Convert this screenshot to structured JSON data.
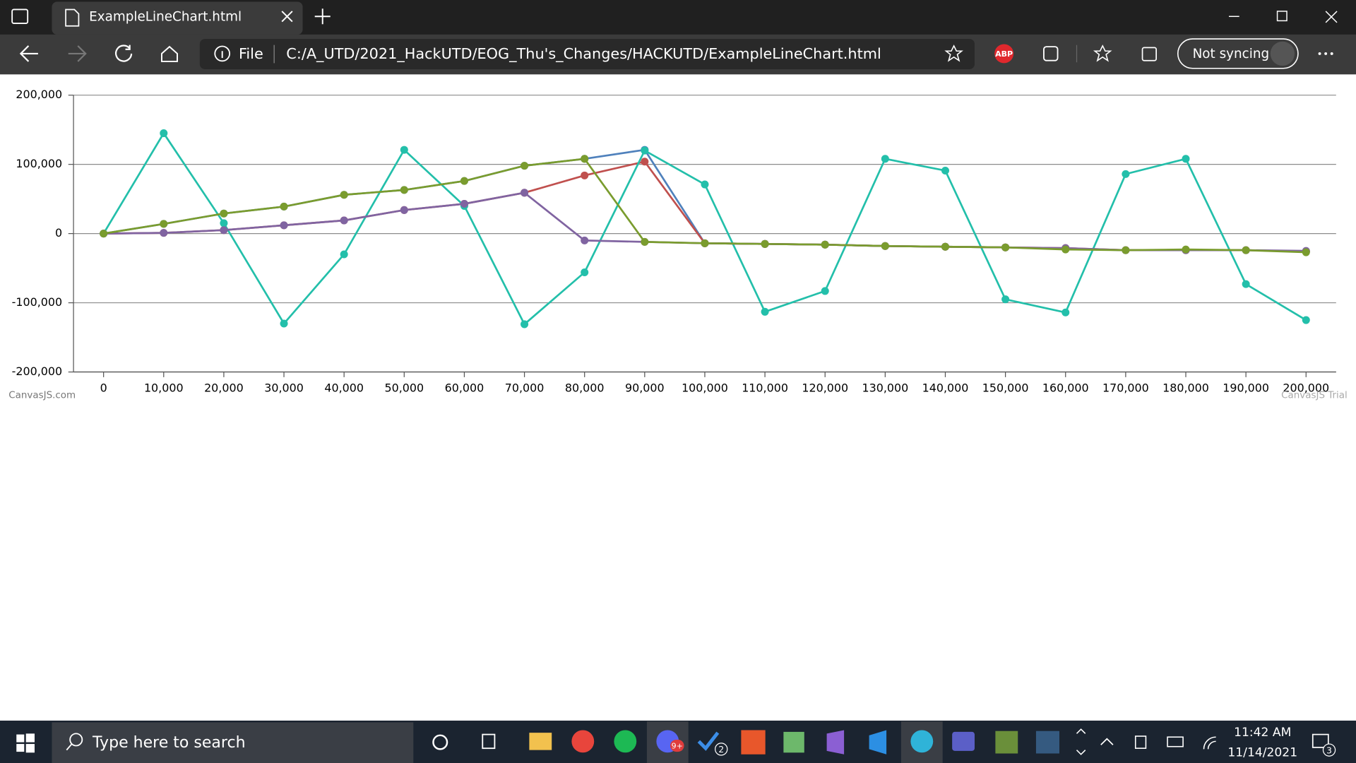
{
  "browser": {
    "tab_title": "ExampleLineChart.html",
    "address_label": "File",
    "url": "C:/A_UTD/2021_HackUTD/EOG_Thu's_Changes/HACKUTD/ExampleLineChart.html",
    "abp": "ABP",
    "sync": "Not syncing"
  },
  "taskbar": {
    "search": "Type here to search",
    "badges": [
      "9+",
      "2",
      "3"
    ],
    "time": "11:42 AM",
    "date": "11/14/2021"
  },
  "chart_data": {
    "type": "line",
    "credit": "CanvasJS.com",
    "watermark": "CanvasJS Trial",
    "grid": true,
    "x": [
      0,
      10000,
      20000,
      30000,
      40000,
      50000,
      60000,
      70000,
      80000,
      90000,
      100000,
      110000,
      120000,
      130000,
      140000,
      150000,
      160000,
      170000,
      180000,
      190000,
      200000
    ],
    "xlim": [
      -5000,
      205000
    ],
    "xticks": [
      0,
      {
        "value": 10000,
        "label": "10,000"
      },
      {
        "value": 20000,
        "label": "20,000"
      },
      {
        "value": 30000,
        "label": "30,000"
      },
      {
        "value": 40000,
        "label": "40,000"
      },
      {
        "value": 50000,
        "label": "50,000"
      },
      {
        "value": 60000,
        "label": "60,000"
      },
      {
        "value": 70000,
        "label": "70,000"
      },
      {
        "value": 80000,
        "label": "80,000"
      },
      {
        "value": 90000,
        "label": "90,000"
      },
      {
        "value": 100000,
        "label": "100,000"
      },
      {
        "value": 110000,
        "label": "110,000"
      },
      {
        "value": 120000,
        "label": "120,000"
      },
      {
        "value": 130000,
        "label": "130,000"
      },
      {
        "value": 140000,
        "label": "140,000"
      },
      {
        "value": 150000,
        "label": "150,000"
      },
      {
        "value": 160000,
        "label": "160,000"
      },
      {
        "value": 170000,
        "label": "170,000"
      },
      {
        "value": 180000,
        "label": "180,000"
      },
      {
        "value": 190000,
        "label": "190,000"
      },
      {
        "value": 200000,
        "label": "200,000"
      }
    ],
    "ylim": [
      -200000,
      200000
    ],
    "yticks": [
      {
        "value": -200000,
        "label": "-200,000"
      },
      {
        "value": -100000,
        "label": "-100,000"
      },
      0,
      {
        "value": 100000,
        "label": "100,000"
      },
      {
        "value": 200000,
        "label": "200,000"
      }
    ],
    "series": [
      {
        "color": "#4f81bc",
        "values": [
          0,
          14000,
          29000,
          39000,
          56000,
          63000,
          76000,
          98000,
          108000,
          121000,
          -14000,
          -15000,
          -16000,
          -18000,
          -19000,
          -20000,
          -22000,
          -24000,
          -24000,
          -24000,
          -26000
        ]
      },
      {
        "color": "#c0504e",
        "values": [
          0,
          1000,
          5000,
          12000,
          19000,
          34000,
          43000,
          59000,
          84000,
          104000,
          -14000,
          -15000,
          -16000,
          -18000,
          -19000,
          -20000,
          -21000,
          -24000,
          -24000,
          -24000,
          -26000
        ]
      },
      {
        "color": "#23bfaa",
        "values": [
          0,
          145000,
          15000,
          -130000,
          -30000,
          121000,
          40000,
          -131000,
          -56000,
          120000,
          71000,
          -113000,
          -83000,
          108000,
          91000,
          -95000,
          -114000,
          86000,
          108000,
          -73000,
          -125000
        ]
      },
      {
        "color": "#8064a1",
        "values": [
          0,
          1000,
          5000,
          12000,
          19000,
          34000,
          43000,
          59000,
          -10000,
          -12000,
          -14000,
          -15000,
          -16000,
          -18000,
          -19000,
          -20000,
          -21000,
          -24000,
          -24000,
          -24000,
          -25000
        ]
      },
      {
        "color": "#7a9c2e",
        "values": [
          0,
          14000,
          29000,
          39000,
          56000,
          63000,
          76000,
          98000,
          108000,
          -12000,
          -14000,
          -15000,
          -16000,
          -18000,
          -19000,
          -20000,
          -23000,
          -24000,
          -23000,
          -24000,
          -27000
        ]
      }
    ]
  }
}
